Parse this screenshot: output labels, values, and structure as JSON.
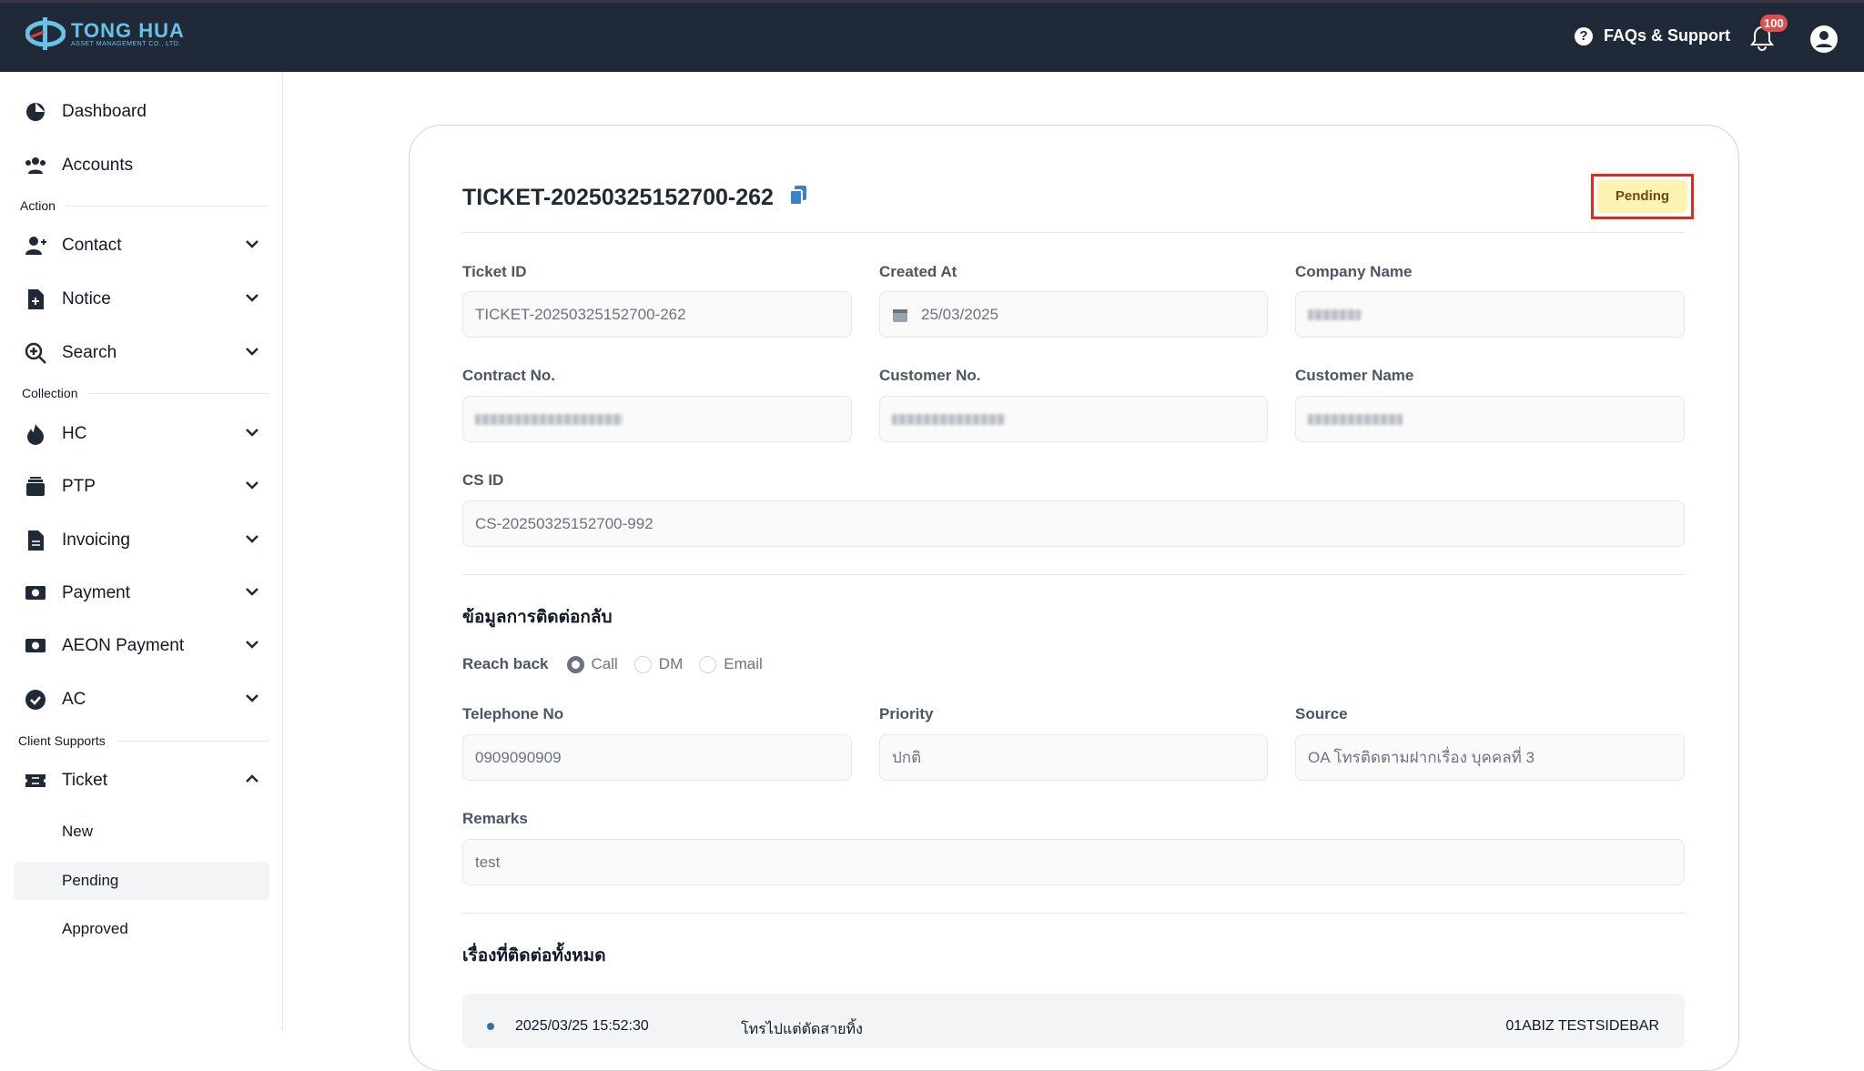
{
  "header": {
    "logo_text": "TONG HUA",
    "logo_subtext": "ASSET MANAGEMENT CO., LTD.",
    "faq_label": "FAQs & Support",
    "notification_count": "100"
  },
  "sidebar": {
    "items": [
      {
        "label": "Dashboard",
        "icon": "pie-chart-icon"
      },
      {
        "label": "Accounts",
        "icon": "users-icon"
      }
    ],
    "sections": [
      {
        "title": "Action",
        "items": [
          {
            "label": "Contact",
            "icon": "user-plus-icon"
          },
          {
            "label": "Notice",
            "icon": "file-plus-icon"
          },
          {
            "label": "Search",
            "icon": "search-plus-icon"
          }
        ]
      },
      {
        "title": "Collection",
        "items": [
          {
            "label": "HC",
            "icon": "fire-icon"
          },
          {
            "label": "PTP",
            "icon": "stack-icon"
          },
          {
            "label": "Invoicing",
            "icon": "invoice-icon"
          },
          {
            "label": "Payment",
            "icon": "money-icon"
          },
          {
            "label": "AEON Payment",
            "icon": "money-icon"
          },
          {
            "label": "AC",
            "icon": "check-circle-icon"
          }
        ]
      },
      {
        "title": "Client Supports",
        "items": [
          {
            "label": "Ticket",
            "icon": "ticket-icon"
          }
        ]
      }
    ],
    "ticket_sub": [
      "New",
      "Pending",
      "Approved"
    ],
    "selected": "Pending"
  },
  "ticket": {
    "title": "TICKET-20250325152700-262",
    "status": "Pending",
    "status_color": "#fdf3b3",
    "fields": {
      "ticket_id_label": "Ticket ID",
      "ticket_id": "TICKET-20250325152700-262",
      "created_label": "Created At",
      "created": "25/03/2025",
      "company_label": "Company Name",
      "contract_label": "Contract No.",
      "customer_no_label": "Customer No.",
      "customer_name_label": "Customer Name",
      "cs_id_label": "CS ID",
      "cs_id": "CS-20250325152700-992"
    },
    "reachback_heading": "ข้อมูลการติดต่อกลับ",
    "reachback_label": "Reach back",
    "reachback_options": [
      "Call",
      "DM",
      "Email"
    ],
    "reachback_selected": "Call",
    "telephone_label": "Telephone No",
    "telephone": "0909090909",
    "priority_label": "Priority",
    "priority": "ปกติ",
    "source_label": "Source",
    "source": "OA โทรติดตามฝากเรื่อง บุคคลที่ 3",
    "remarks_label": "Remarks",
    "remarks": "test",
    "history_heading": "เรื่องที่ติดต่อทั้งหมด",
    "history": [
      {
        "datetime": "2025/03/25 15:52:30",
        "note": "โทรไปแต่ตัดสายทิ้ง",
        "user": "01ABIZ TESTSIDEBAR"
      }
    ]
  }
}
